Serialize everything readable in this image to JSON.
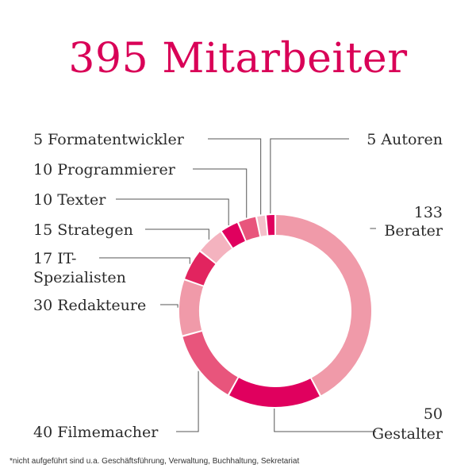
{
  "title": "395 Mitarbeiter",
  "footnote": "*nicht aufgeführt sind u.a. Geschäftsführung, Verwaltung, Buchhaltung, Sekretariat",
  "chart_data": {
    "type": "pie",
    "title": "395 Mitarbeiter",
    "slices": [
      {
        "label": "Berater",
        "value": 133,
        "label_lines": [
          "133",
          "Berater"
        ],
        "color": "#f09aa9"
      },
      {
        "label": "Gestalter",
        "value": 50,
        "label_lines": [
          "50",
          "Gestalter"
        ],
        "color": "#e0005e"
      },
      {
        "label": "Filmemacher",
        "value": 40,
        "label_lines": [
          "40 Filmemacher"
        ],
        "color": "#e8557c"
      },
      {
        "label": "Redakteure",
        "value": 30,
        "label_lines": [
          "30 Redakteure"
        ],
        "color": "#f09aa9"
      },
      {
        "label": "IT-Spezialisten",
        "value": 17,
        "label_lines": [
          "17 IT-",
          "Spezialisten"
        ],
        "color": "#e2245f"
      },
      {
        "label": "Strategen",
        "value": 15,
        "label_lines": [
          "15 Strategen"
        ],
        "color": "#f4b3bf"
      },
      {
        "label": "Texter",
        "value": 10,
        "label_lines": [
          "10 Texter"
        ],
        "color": "#e0005e"
      },
      {
        "label": "Programmierer",
        "value": 10,
        "label_lines": [
          "10 Programmierer"
        ],
        "color": "#e8557c"
      },
      {
        "label": "Formatentwickler",
        "value": 5,
        "label_lines": [
          "5 Formatentwickler"
        ],
        "color": "#f4c0ca"
      },
      {
        "label": "Autoren",
        "value": 5,
        "label_lines": [
          "5 Autoren"
        ],
        "color": "#e0005e"
      }
    ]
  }
}
